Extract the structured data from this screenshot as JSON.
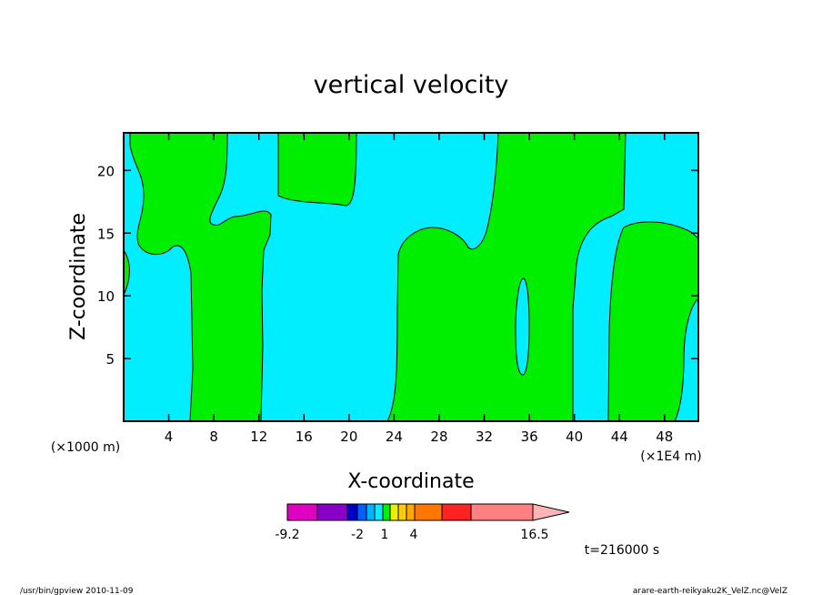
{
  "chart_data": {
    "type": "heatmap",
    "title": "vertical velocity",
    "xlabel": "X-coordinate",
    "ylabel": "Z-coordinate",
    "x_unit_left": "(×1000 m)",
    "x_unit_right": "(×1E4 m)",
    "xlim": [
      0,
      51
    ],
    "ylim": [
      0,
      23
    ],
    "xticks": [
      4,
      8,
      12,
      16,
      20,
      24,
      28,
      32,
      36,
      40,
      44,
      48
    ],
    "yticks": [
      5,
      10,
      15,
      20
    ],
    "colors": {
      "positive_region": "#00ee00",
      "negative_region": "#00eeff",
      "contour": "#000000"
    },
    "colorbar": {
      "colors": [
        "#e000c0",
        "#8800c8",
        "#0000cc",
        "#0060ff",
        "#00b4ff",
        "#00eeff",
        "#00ee00",
        "#eeee00",
        "#ffcc00",
        "#ffaa00",
        "#ff7700",
        "#ff2222",
        "#ff8080",
        "#ffb4b4"
      ],
      "tick_labels": [
        {
          "label": "-9.2",
          "value": -9.2
        },
        {
          "label": "-2",
          "value": -2
        },
        {
          "label": "1",
          "value": 1
        },
        {
          "label": "4",
          "value": 4
        },
        {
          "label": "16.5",
          "value": 16.5
        }
      ]
    },
    "time_label": "t=216000 s"
  },
  "footer": {
    "left": "/usr/bin/gpview   2010-11-09",
    "right": "arare-earth-reikyaku2K_VelZ.nc@VelZ"
  }
}
